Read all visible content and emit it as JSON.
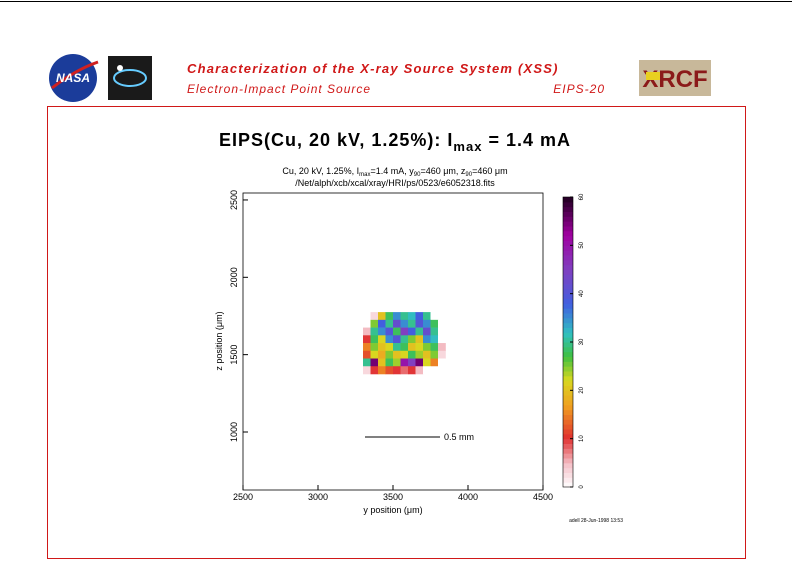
{
  "header": {
    "logo_left_text": "NASA",
    "title": "Characterization of the X-ray Source System (XSS)",
    "subtitle": "Electron-Impact Point Source",
    "code": "EIPS-20",
    "logo_right_text": "XRCF"
  },
  "chart_data": {
    "type": "heatmap",
    "title": {
      "main": "EIPS(Cu, 20 kV, 1.25%): I",
      "sub": "max",
      "rest": " = 1.4 mA"
    },
    "subtitle": {
      "line1": "Cu, 20 kV, 1.25%, I",
      "line1_sub": "max",
      "line1_rest": "=1.4 mA, y",
      "line1_sub2": "90",
      "line1_rest2": "=460 μm, z",
      "line1_sub3": "90",
      "line1_rest3": "=460 μm",
      "line2": "/Net/alph/xcb/xcal/xray/HRI/ps/0523/e6052318.fits"
    },
    "xlabel": "y position (μm)",
    "ylabel": "z position (μm)",
    "xlim": [
      2500,
      4500
    ],
    "ylim": [
      625,
      2545
    ],
    "xticks": [
      2500,
      3000,
      3500,
      4000,
      4500
    ],
    "yticks": [
      1000,
      1500,
      2000,
      2500
    ],
    "x": [
      3325,
      3375,
      3425,
      3475,
      3525,
      3575,
      3625,
      3675,
      3725,
      3775,
      3825
    ],
    "y": [
      1750,
      1700,
      1650,
      1600,
      1550,
      1500,
      1450,
      1400
    ],
    "values": [
      [
        0,
        3,
        20,
        28,
        35,
        30,
        32,
        38,
        30,
        0,
        0
      ],
      [
        0,
        25,
        38,
        30,
        42,
        35,
        30,
        40,
        35,
        28,
        0
      ],
      [
        5,
        30,
        35,
        40,
        28,
        45,
        38,
        30,
        42,
        30,
        0
      ],
      [
        10,
        28,
        22,
        35,
        40,
        30,
        25,
        20,
        35,
        32,
        0
      ],
      [
        15,
        25,
        20,
        22,
        30,
        28,
        20,
        22,
        25,
        28,
        5
      ],
      [
        12,
        22,
        18,
        25,
        20,
        22,
        28,
        24,
        20,
        25,
        3
      ],
      [
        30,
        55,
        20,
        28,
        24,
        50,
        45,
        55,
        22,
        15,
        0
      ],
      [
        3,
        10,
        15,
        12,
        10,
        8,
        10,
        5,
        0,
        0,
        0
      ]
    ],
    "scale_bar": "0.5 mm",
    "colorbar": {
      "lim": [
        0,
        60
      ],
      "ticks": [
        0,
        10,
        20,
        30,
        40,
        50,
        60
      ]
    },
    "footer": "adell 28-Jun-1998 13:53"
  }
}
